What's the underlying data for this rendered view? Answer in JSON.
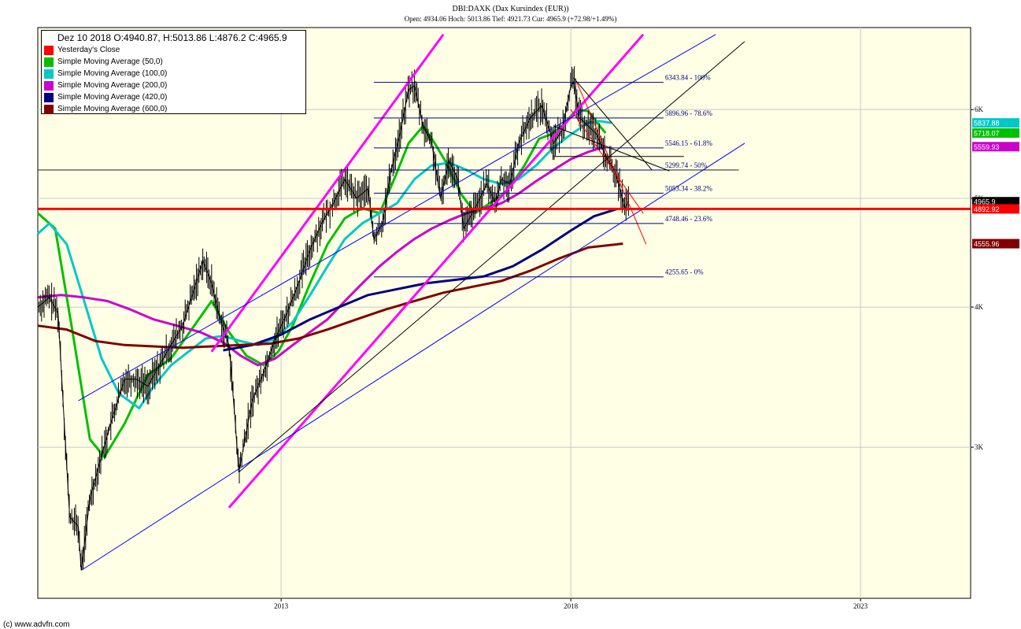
{
  "header": {
    "title": "DBI:DAXK (Dax Kursindex (EUR))",
    "subtitle": "Open: 4934.06 Hoch: 5013.86 Tief: 4921.73 Cur: 4965.9 (+72.98/+1.49%)"
  },
  "legend": {
    "title": "Dez 10 2018  O:4940.87,  H:5013.86  L:4876.2  C:4965.9",
    "items": [
      {
        "label": "Yesterday's Close",
        "color": "#ff0000"
      },
      {
        "label": "Simple Moving Average (50,0)",
        "color": "#00c000"
      },
      {
        "label": "Simple Moving Average (100,0)",
        "color": "#00c8c8"
      },
      {
        "label": "Simple Moving Average (200,0)",
        "color": "#cc00cc"
      },
      {
        "label": "Simple Moving Average (420,0)",
        "color": "#000080"
      },
      {
        "label": "Simple Moving Average (600,0)",
        "color": "#800000"
      }
    ]
  },
  "credit": "(c) www.advfn.com",
  "chart_data": {
    "type": "line",
    "y_scale": "log",
    "ylim": [
      2200,
      7100
    ],
    "xlim": [
      2008.8,
      2024.9
    ],
    "x_ticks": [
      {
        "value": 2013,
        "label": "2013"
      },
      {
        "value": 2018,
        "label": "2018"
      },
      {
        "value": 2023,
        "label": "2023"
      }
    ],
    "y_ticks": [
      {
        "value": 3000,
        "label": "3K"
      },
      {
        "value": 4000,
        "label": "4K"
      },
      {
        "value": 5000,
        "label": "5K"
      },
      {
        "value": 6000,
        "label": "6K"
      }
    ],
    "grid": true,
    "legend_position": "top-left",
    "price_series": {
      "name": "DAXK",
      "points": [
        [
          2008.8,
          4000
        ],
        [
          2009.0,
          4080
        ],
        [
          2009.15,
          3950
        ],
        [
          2009.25,
          3200
        ],
        [
          2009.35,
          2600
        ],
        [
          2009.5,
          2550
        ],
        [
          2009.55,
          2330
        ],
        [
          2009.7,
          2700
        ],
        [
          2009.9,
          2950
        ],
        [
          2010.1,
          3200
        ],
        [
          2010.3,
          3450
        ],
        [
          2010.5,
          3450
        ],
        [
          2010.7,
          3400
        ],
        [
          2010.9,
          3550
        ],
        [
          2011.1,
          3700
        ],
        [
          2011.3,
          3850
        ],
        [
          2011.5,
          4150
        ],
        [
          2011.65,
          4400
        ],
        [
          2011.8,
          4200
        ],
        [
          2011.95,
          3900
        ],
        [
          2012.1,
          3700
        ],
        [
          2012.2,
          3200
        ],
        [
          2012.27,
          2850
        ],
        [
          2012.35,
          3000
        ],
        [
          2012.5,
          3300
        ],
        [
          2012.7,
          3500
        ],
        [
          2012.9,
          3750
        ],
        [
          2013.1,
          3950
        ],
        [
          2013.3,
          4200
        ],
        [
          2013.5,
          4500
        ],
        [
          2013.7,
          4750
        ],
        [
          2013.9,
          4950
        ],
        [
          2014.1,
          5200
        ],
        [
          2014.3,
          5000
        ],
        [
          2014.5,
          5100
        ],
        [
          2014.6,
          4600
        ],
        [
          2014.75,
          4750
        ],
        [
          2014.9,
          5300
        ],
        [
          2015.05,
          5700
        ],
        [
          2015.2,
          6250
        ],
        [
          2015.3,
          6300
        ],
        [
          2015.45,
          5800
        ],
        [
          2015.6,
          5600
        ],
        [
          2015.75,
          5000
        ],
        [
          2015.9,
          5400
        ],
        [
          2016.05,
          5200
        ],
        [
          2016.15,
          4700
        ],
        [
          2016.35,
          4900
        ],
        [
          2016.55,
          5150
        ],
        [
          2016.7,
          4950
        ],
        [
          2016.8,
          5200
        ],
        [
          2016.95,
          5150
        ],
        [
          2017.1,
          5600
        ],
        [
          2017.3,
          5900
        ],
        [
          2017.5,
          6050
        ],
        [
          2017.7,
          5600
        ],
        [
          2017.85,
          5750
        ],
        [
          2018.0,
          6300
        ],
        [
          2018.05,
          6350
        ],
        [
          2018.15,
          5900
        ],
        [
          2018.3,
          5800
        ],
        [
          2018.45,
          5700
        ],
        [
          2018.6,
          5450
        ],
        [
          2018.75,
          5300
        ],
        [
          2018.85,
          5100
        ],
        [
          2018.93,
          4900
        ],
        [
          2019.0,
          4966
        ]
      ]
    },
    "moving_averages": [
      {
        "name": "Simple Moving Average (50,0)",
        "color": "#00c000",
        "points": [
          [
            2008.8,
            4850
          ],
          [
            2009.1,
            4700
          ],
          [
            2009.4,
            3800
          ],
          [
            2009.7,
            3050
          ],
          [
            2009.95,
            2940
          ],
          [
            2010.3,
            3150
          ],
          [
            2010.7,
            3480
          ],
          [
            2011.1,
            3600
          ],
          [
            2011.5,
            3850
          ],
          [
            2011.8,
            4050
          ],
          [
            2012.1,
            3800
          ],
          [
            2012.4,
            3620
          ],
          [
            2012.7,
            3550
          ],
          [
            2012.95,
            3650
          ],
          [
            2013.2,
            3850
          ],
          [
            2013.5,
            4200
          ],
          [
            2013.8,
            4550
          ],
          [
            2014.1,
            4800
          ],
          [
            2014.4,
            4900
          ],
          [
            2014.7,
            4850
          ],
          [
            2014.95,
            5200
          ],
          [
            2015.2,
            5600
          ],
          [
            2015.45,
            5800
          ],
          [
            2015.65,
            5600
          ],
          [
            2015.85,
            5380
          ],
          [
            2016.1,
            5050
          ],
          [
            2016.35,
            4850
          ],
          [
            2016.6,
            4950
          ],
          [
            2016.9,
            5080
          ],
          [
            2017.2,
            5350
          ],
          [
            2017.45,
            5650
          ],
          [
            2017.65,
            5700
          ],
          [
            2017.85,
            5800
          ],
          [
            2018.1,
            6000
          ],
          [
            2018.3,
            5980
          ],
          [
            2018.5,
            5800
          ],
          [
            2018.6,
            5718
          ]
        ]
      },
      {
        "name": "Simple Moving Average (100,0)",
        "color": "#00c8c8",
        "points": [
          [
            2008.8,
            4650
          ],
          [
            2009.0,
            4750
          ],
          [
            2009.3,
            4550
          ],
          [
            2009.6,
            4050
          ],
          [
            2009.9,
            3600
          ],
          [
            2010.2,
            3350
          ],
          [
            2010.55,
            3250
          ],
          [
            2010.8,
            3400
          ],
          [
            2011.1,
            3550
          ],
          [
            2011.4,
            3650
          ],
          [
            2011.7,
            3750
          ],
          [
            2012.0,
            3770
          ],
          [
            2012.3,
            3730
          ],
          [
            2012.6,
            3700
          ],
          [
            2012.9,
            3750
          ],
          [
            2013.2,
            3880
          ],
          [
            2013.5,
            4100
          ],
          [
            2013.8,
            4350
          ],
          [
            2014.1,
            4600
          ],
          [
            2014.4,
            4750
          ],
          [
            2014.7,
            4850
          ],
          [
            2015.0,
            4950
          ],
          [
            2015.3,
            5200
          ],
          [
            2015.6,
            5350
          ],
          [
            2015.9,
            5380
          ],
          [
            2016.2,
            5300
          ],
          [
            2016.5,
            5200
          ],
          [
            2016.8,
            5150
          ],
          [
            2017.1,
            5200
          ],
          [
            2017.4,
            5350
          ],
          [
            2017.7,
            5550
          ],
          [
            2018.0,
            5700
          ],
          [
            2018.3,
            5840
          ],
          [
            2018.5,
            5860
          ],
          [
            2018.7,
            5838
          ]
        ]
      },
      {
        "name": "Simple Moving Average (200,0)",
        "color": "#cc00cc",
        "points": [
          [
            2008.8,
            4080
          ],
          [
            2009.2,
            4100
          ],
          [
            2009.6,
            4080
          ],
          [
            2010.0,
            4050
          ],
          [
            2010.4,
            3980
          ],
          [
            2010.8,
            3900
          ],
          [
            2011.2,
            3850
          ],
          [
            2011.6,
            3800
          ],
          [
            2012.0,
            3720
          ],
          [
            2012.3,
            3620
          ],
          [
            2012.6,
            3550
          ],
          [
            2012.9,
            3600
          ],
          [
            2013.2,
            3700
          ],
          [
            2013.5,
            3800
          ],
          [
            2013.8,
            3900
          ],
          [
            2014.1,
            4050
          ],
          [
            2014.4,
            4200
          ],
          [
            2014.7,
            4350
          ],
          [
            2015.0,
            4480
          ],
          [
            2015.3,
            4600
          ],
          [
            2015.6,
            4700
          ],
          [
            2015.9,
            4780
          ],
          [
            2016.2,
            4850
          ],
          [
            2016.5,
            4900
          ],
          [
            2016.8,
            4950
          ],
          [
            2017.1,
            5050
          ],
          [
            2017.4,
            5180
          ],
          [
            2017.7,
            5300
          ],
          [
            2018.0,
            5420
          ],
          [
            2018.3,
            5500
          ],
          [
            2018.6,
            5560
          ]
        ]
      },
      {
        "name": "Simple Moving Average (420,0)",
        "color": "#000080",
        "points": [
          [
            2012.0,
            3660
          ],
          [
            2012.5,
            3700
          ],
          [
            2013.0,
            3780
          ],
          [
            2013.5,
            3900
          ],
          [
            2014.0,
            4000
          ],
          [
            2014.5,
            4100
          ],
          [
            2015.0,
            4150
          ],
          [
            2015.5,
            4200
          ],
          [
            2016.0,
            4230
          ],
          [
            2016.5,
            4260
          ],
          [
            2017.0,
            4350
          ],
          [
            2017.5,
            4500
          ],
          [
            2018.0,
            4680
          ],
          [
            2018.4,
            4820
          ],
          [
            2018.8,
            4893
          ]
        ]
      },
      {
        "name": "Simple Moving Average (600,0)",
        "color": "#800000",
        "points": [
          [
            2008.8,
            3850
          ],
          [
            2009.3,
            3820
          ],
          [
            2009.8,
            3730
          ],
          [
            2010.3,
            3700
          ],
          [
            2010.8,
            3690
          ],
          [
            2011.3,
            3680
          ],
          [
            2011.8,
            3690
          ],
          [
            2012.3,
            3700
          ],
          [
            2012.8,
            3710
          ],
          [
            2013.3,
            3750
          ],
          [
            2013.8,
            3820
          ],
          [
            2014.3,
            3900
          ],
          [
            2014.8,
            3980
          ],
          [
            2015.3,
            4050
          ],
          [
            2015.8,
            4120
          ],
          [
            2016.3,
            4170
          ],
          [
            2016.8,
            4220
          ],
          [
            2017.3,
            4310
          ],
          [
            2017.8,
            4420
          ],
          [
            2018.3,
            4520
          ],
          [
            2018.9,
            4556
          ]
        ]
      }
    ],
    "horizontal_lines": [
      {
        "name": "Yesterday's Close",
        "value": 4892.92,
        "color": "#ff0000"
      }
    ],
    "fib_levels": [
      {
        "label": "6343.84 - 100%",
        "value": 6343.84
      },
      {
        "label": "5896.96 - 78.6%",
        "value": 5896.96
      },
      {
        "label": "5546.15 - 61.8%",
        "value": 5546.15
      },
      {
        "label": "5299.74 - 50%",
        "value": 5299.74
      },
      {
        "label": "5053.34 - 38.2%",
        "value": 5053.34
      },
      {
        "label": "4748.46 - 23.6%",
        "value": 4748.46
      },
      {
        "label": "4255.65 - 0%",
        "value": 4255.65
      }
    ],
    "price_badges": [
      {
        "value": 5837.88,
        "label": "5837.88",
        "bg": "#00c8c8",
        "fg": "#ffffff"
      },
      {
        "value": 5718.07,
        "label": "5718.07",
        "bg": "#00c000",
        "fg": "#ffffff"
      },
      {
        "value": 5559.93,
        "label": "5559.93",
        "bg": "#cc00cc",
        "fg": "#ffffff"
      },
      {
        "value": 4965.9,
        "label": "4965.9",
        "bg": "#000000",
        "fg": "#ffffff"
      },
      {
        "value": 4892.92,
        "label": "4892.92",
        "bg": "#ff0000",
        "fg": "#ffffff"
      },
      {
        "value": 4555.96,
        "label": "4555.96",
        "bg": "#800000",
        "fg": "#ffffff"
      }
    ],
    "trendlines": [
      {
        "color": "#ff00ff",
        "points": [
          [
            2011.8,
            3650
          ],
          [
            2015.8,
            7000
          ]
        ]
      },
      {
        "color": "#ff00ff",
        "points": [
          [
            2012.1,
            2650
          ],
          [
            2019.25,
            7000
          ]
        ]
      },
      {
        "color": "#0000ff",
        "points": [
          [
            2009.5,
            3300
          ],
          [
            2020.5,
            7000
          ]
        ]
      },
      {
        "color": "#0000ff",
        "points": [
          [
            2009.55,
            2330
          ],
          [
            2021.0,
            5600
          ]
        ]
      },
      {
        "color": "#000000",
        "points": [
          [
            2012.27,
            2850
          ],
          [
            2021.0,
            6900
          ]
        ]
      },
      {
        "color": "#ff0000",
        "points": [
          [
            2018.0,
            6000
          ],
          [
            2019.25,
            4850
          ]
        ]
      },
      {
        "color": "#ff0000",
        "points": [
          [
            2018.1,
            6350
          ],
          [
            2019.3,
            4550
          ]
        ]
      },
      {
        "color": "#000000",
        "points": [
          [
            2018.05,
            6400
          ],
          [
            2019.4,
            5300
          ]
        ]
      },
      {
        "color": "#000000",
        "points": [
          [
            2017.7,
            5800
          ],
          [
            2019.7,
            5290
          ]
        ]
      },
      {
        "color": "#000000",
        "points": [
          [
            2017.7,
            5450
          ],
          [
            2019.95,
            5450
          ]
        ]
      }
    ]
  }
}
